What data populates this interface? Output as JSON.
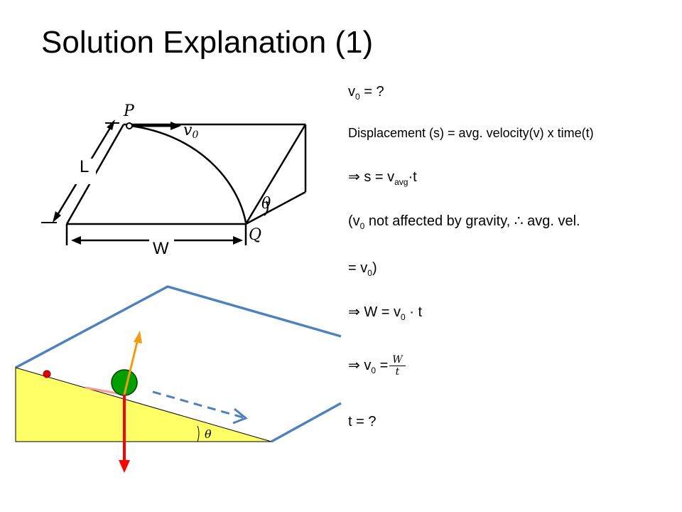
{
  "title": "Solution Explanation (1)",
  "figure_top": {
    "labels": {
      "P": "P",
      "v0_symbol": "v",
      "v0_sub": "0",
      "theta": "θ",
      "Q": "Q",
      "L": "L",
      "W": "W"
    }
  },
  "figure_bottom": {
    "theta": "θ",
    "colors": {
      "incline": "#ffff66",
      "plane": "#4f81bd",
      "ball": "#00a000",
      "gravity": "#ff0000",
      "normal": "#f39c12",
      "dot": "#e00000"
    }
  },
  "lines": {
    "l1": {
      "pre": "v",
      "sub": "0",
      "post": " = ?"
    },
    "l2": {
      "text": "Displacement (s) = avg. velocity(v) x time(t)"
    },
    "l3": {
      "pre": "⇒ s = v",
      "sub": "avg",
      "post": "·t"
    },
    "l4": {
      "pre": "(v",
      "sub": "0",
      "post": " not affected by gravity, ∴ avg. vel."
    },
    "l5": {
      "pre": "= v",
      "sub": "0",
      "post": ")"
    },
    "l6": {
      "pre": "⇒ W = v",
      "sub": "0",
      "post": " · t"
    },
    "l7": {
      "pre": "⇒ v",
      "sub": "0",
      "post": " =",
      "num": "W",
      "den": "t"
    },
    "l8": {
      "text": "t = ?"
    }
  }
}
